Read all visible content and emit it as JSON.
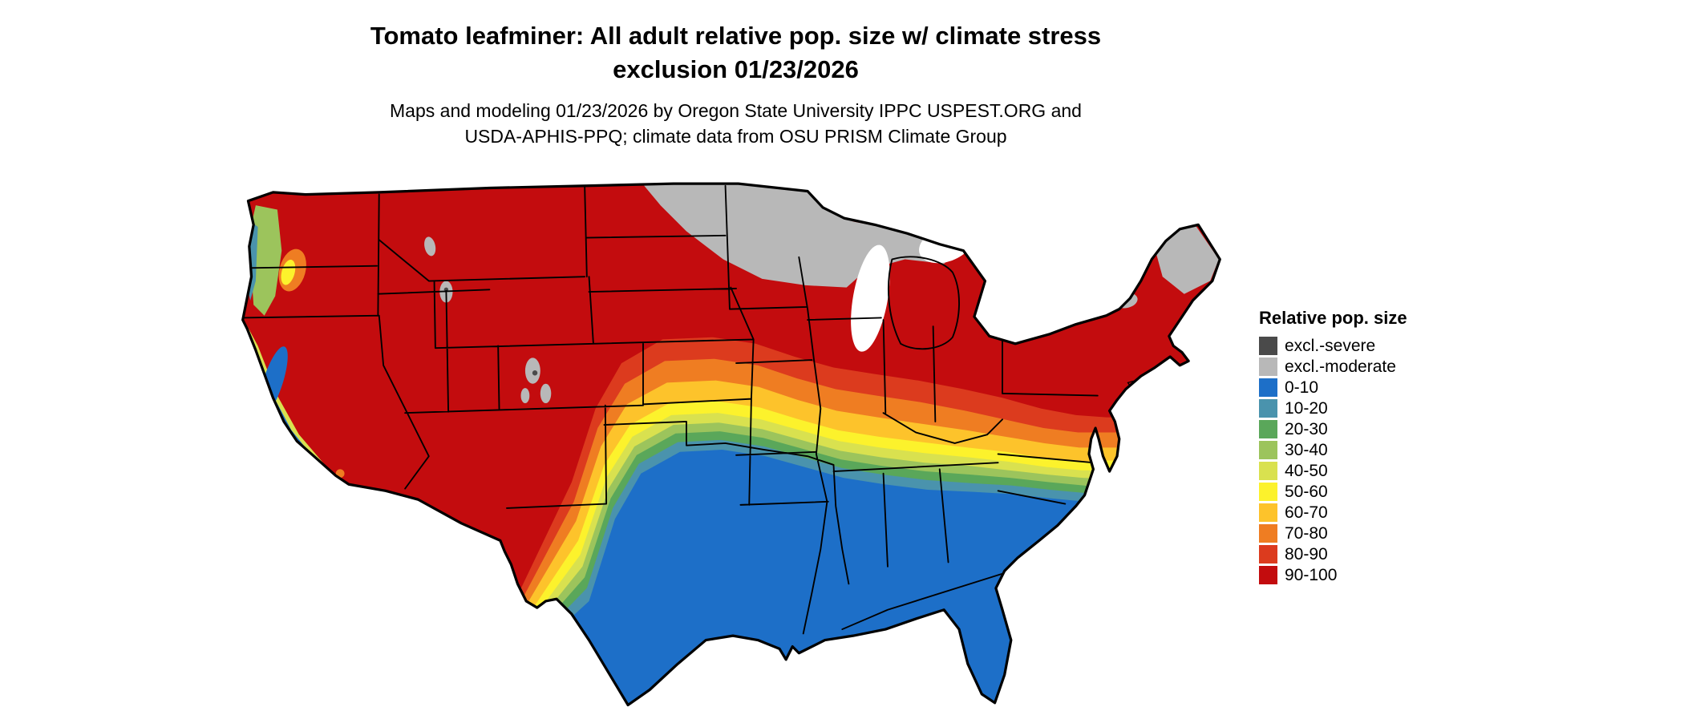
{
  "title": {
    "line1": "Tomato leafminer: All adult relative pop. size w/ climate stress",
    "line2": "exclusion 01/23/2026"
  },
  "subtitle": {
    "line1": "Maps and modeling 01/23/2026 by Oregon State University IPPC USPEST.ORG and",
    "line2": "USDA-APHIS-PPQ; climate data from OSU PRISM Climate Group"
  },
  "legend": {
    "title": "Relative pop. size",
    "items": [
      {
        "label": "excl.-severe",
        "color": "#4a4a4a"
      },
      {
        "label": "excl.-moderate",
        "color": "#b8b8b8"
      },
      {
        "label": "0-10",
        "color": "#1d6fc8"
      },
      {
        "label": "10-20",
        "color": "#4a93ad"
      },
      {
        "label": "20-30",
        "color": "#5aa75a"
      },
      {
        "label": "30-40",
        "color": "#9cc45c"
      },
      {
        "label": "40-50",
        "color": "#d9e14f"
      },
      {
        "label": "50-60",
        "color": "#fcf22c"
      },
      {
        "label": "60-70",
        "color": "#fdc32b"
      },
      {
        "label": "70-80",
        "color": "#ef7d22"
      },
      {
        "label": "80-90",
        "color": "#dc3b1e"
      },
      {
        "label": "90-100",
        "color": "#c30c0e"
      }
    ]
  }
}
